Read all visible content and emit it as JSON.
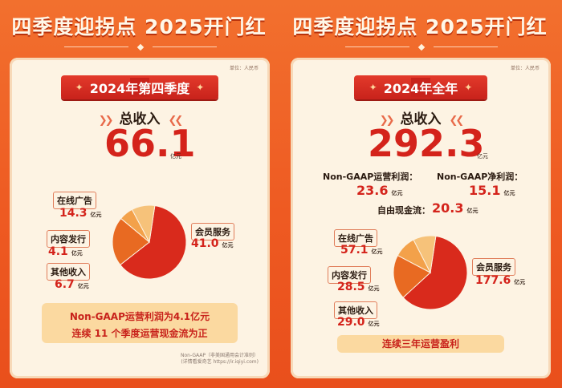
{
  "headline": "四季度迎拐点 2025开门红",
  "unit_note": "单位：人民币",
  "left": {
    "banner": "2024年第四季度",
    "total_label": "总收入",
    "total_value": "66.1",
    "total_unit": "亿元",
    "note_line1": "Non-GAAP运营利润为4.1亿元",
    "note_line2": "连续 11 个季度运营现金流为正",
    "footnote_line1": "Non-GAAP（非美国通用会计准则）",
    "footnote_line2": "(详情看爱奇艺 https://ir.iqiyi.com)"
  },
  "right": {
    "banner": "2024年全年",
    "total_label": "总收入",
    "total_value": "292.3",
    "total_unit": "亿元",
    "metrics": [
      {
        "label": "Non-GAAP运营利润：",
        "value": "23.6",
        "unit": "亿元"
      },
      {
        "label": "Non-GAAP净利润：",
        "value": "15.1",
        "unit": "亿元"
      },
      {
        "label": "自由现金流：",
        "value": "20.3",
        "unit": "亿元"
      }
    ],
    "note": "连续三年运营盈利"
  },
  "chart_data": [
    {
      "type": "pie",
      "title": "2024年第四季度 总收入 66.1亿元",
      "unit": "亿元",
      "slices": [
        {
          "name": "会员服务",
          "value": 41.0,
          "color": "#d92a1c"
        },
        {
          "name": "在线广告",
          "value": 14.3,
          "color": "#e86a22"
        },
        {
          "name": "内容发行",
          "value": 4.1,
          "color": "#f3a14a"
        },
        {
          "name": "其他收入",
          "value": 6.7,
          "color": "#f6c27a"
        }
      ]
    },
    {
      "type": "pie",
      "title": "2024年全年 总收入 292.3亿元",
      "unit": "亿元",
      "slices": [
        {
          "name": "会员服务",
          "value": 177.6,
          "color": "#d92a1c"
        },
        {
          "name": "在线广告",
          "value": 57.1,
          "color": "#e86a22"
        },
        {
          "name": "内容发行",
          "value": 28.5,
          "color": "#f3a14a"
        },
        {
          "name": "其他收入",
          "value": 29.0,
          "color": "#f6c27a"
        }
      ]
    }
  ]
}
